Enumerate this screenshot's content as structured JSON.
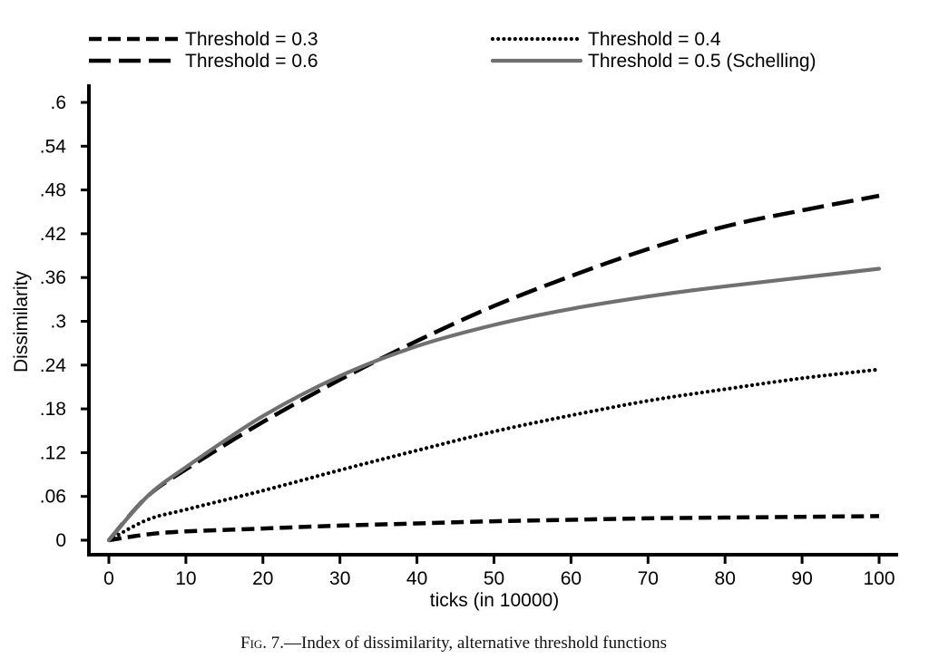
{
  "chart_data": {
    "type": "line",
    "xlabel": "ticks (in 10000)",
    "ylabel": "Dissimilarity",
    "xlim": [
      0,
      100
    ],
    "ylim": [
      0,
      0.6
    ],
    "x_ticks": [
      0,
      10,
      20,
      30,
      40,
      50,
      60,
      70,
      80,
      90,
      100
    ],
    "y_ticks": [
      0,
      0.06,
      0.12,
      0.18,
      0.24,
      0.3,
      0.36,
      0.42,
      0.48,
      0.54,
      0.6
    ],
    "x_tick_labels": [
      "0",
      "10",
      "20",
      "30",
      "40",
      "50",
      "60",
      "70",
      "80",
      "90",
      "100"
    ],
    "y_tick_labels": [
      "0",
      ".06",
      ".12",
      ".18",
      ".24",
      ".3",
      ".36",
      ".42",
      ".48",
      ".54",
      ".6"
    ],
    "grid": false,
    "legend_position": "top",
    "x": [
      0,
      5,
      10,
      20,
      30,
      40,
      50,
      60,
      70,
      80,
      90,
      100
    ],
    "series": [
      {
        "name": "Threshold = 0.3",
        "style": "short-dash",
        "color": "#000000",
        "values": [
          0,
          0.008,
          0.012,
          0.016,
          0.02,
          0.023,
          0.026,
          0.028,
          0.03,
          0.031,
          0.032,
          0.033
        ]
      },
      {
        "name": "Threshold = 0.4",
        "style": "dotted",
        "color": "#000000",
        "values": [
          0,
          0.028,
          0.042,
          0.068,
          0.096,
          0.123,
          0.149,
          0.171,
          0.191,
          0.207,
          0.222,
          0.234
        ]
      },
      {
        "name": "Threshold = 0.6",
        "style": "long-dash",
        "color": "#000000",
        "values": [
          0,
          0.06,
          0.097,
          0.162,
          0.22,
          0.273,
          0.321,
          0.362,
          0.399,
          0.43,
          0.452,
          0.472
        ]
      },
      {
        "name": "Threshold = 0.5 (Schelling)",
        "style": "solid",
        "color": "#707070",
        "values": [
          0,
          0.06,
          0.1,
          0.17,
          0.225,
          0.266,
          0.295,
          0.317,
          0.334,
          0.348,
          0.36,
          0.372
        ]
      }
    ]
  },
  "caption": {
    "prefix": "Fig.",
    "text": " 7.—Index of dissimilarity, alternative threshold functions"
  }
}
